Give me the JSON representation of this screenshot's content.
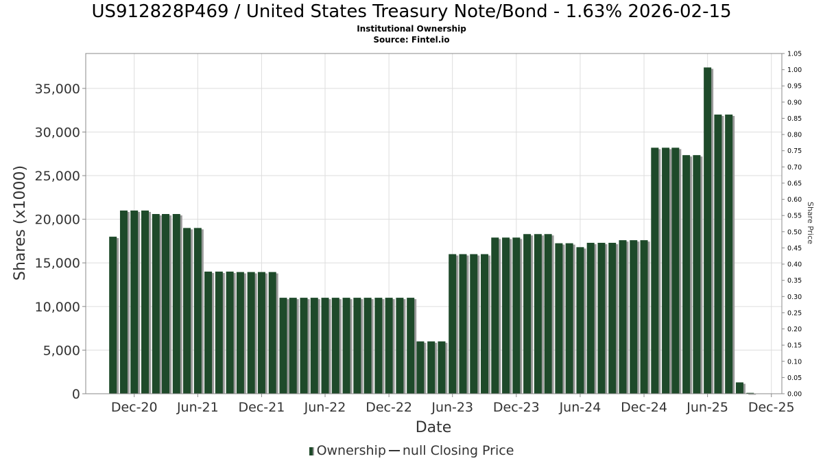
{
  "header": {
    "title": "US912828P469 / United States Treasury Note/Bond - 1.63% 2026-02-15",
    "subtitle": "Institutional Ownership",
    "source": "Source: Fintel.io"
  },
  "legend": {
    "ownership_label": "Ownership",
    "price_label": "null Closing Price"
  },
  "colors": {
    "bar": "#1e4a2a",
    "bar_shadow": "#9a9a9a",
    "grid": "#dddddd"
  },
  "chart_data": {
    "type": "bar",
    "title": "US912828P469 / United States Treasury Note/Bond - 1.63% 2026-02-15",
    "xlabel": "Date",
    "ylabel": "Shares (x1000)",
    "y2label": "Share Price",
    "ylim": [
      0,
      39000
    ],
    "y2lim": [
      0,
      1.05
    ],
    "yticks": [
      0,
      5000,
      10000,
      15000,
      20000,
      25000,
      30000,
      35000
    ],
    "yticklabels": [
      "0",
      "5,000",
      "10,000",
      "15,000",
      "20,000",
      "25,000",
      "30,000",
      "35,000"
    ],
    "y2ticklabels": [
      "0.00",
      "0.05",
      "0.10",
      "0.15",
      "0.20",
      "0.25",
      "0.30",
      "0.35",
      "0.40",
      "0.45",
      "0.50",
      "0.55",
      "0.60",
      "0.65",
      "0.70",
      "0.75",
      "0.80",
      "0.85",
      "0.90",
      "0.95",
      "1.00",
      "1.05"
    ],
    "xlim": [
      "2020-07-15",
      "2025-12-31"
    ],
    "xticks": [
      "2020-12-01",
      "2021-06-01",
      "2021-12-01",
      "2022-06-01",
      "2022-12-01",
      "2023-06-01",
      "2023-12-01",
      "2024-06-01",
      "2024-12-01",
      "2025-06-01",
      "2025-12-01"
    ],
    "xticklabels": [
      "Dec-20",
      "Jun-21",
      "Dec-21",
      "Jun-22",
      "Dec-22",
      "Jun-23",
      "Dec-23",
      "Jun-24",
      "Dec-24",
      "Jun-25",
      "Dec-25"
    ],
    "grid": true,
    "legend_position": "bottom",
    "series": [
      {
        "name": "Ownership",
        "x": [
          "2020-10-01",
          "2020-11-01",
          "2020-12-01",
          "2021-01-01",
          "2021-02-01",
          "2021-03-01",
          "2021-04-01",
          "2021-05-01",
          "2021-06-01",
          "2021-07-01",
          "2021-08-01",
          "2021-09-01",
          "2021-10-01",
          "2021-11-01",
          "2021-12-01",
          "2022-01-01",
          "2022-02-01",
          "2022-03-01",
          "2022-04-01",
          "2022-05-01",
          "2022-06-01",
          "2022-07-01",
          "2022-08-01",
          "2022-09-01",
          "2022-10-01",
          "2022-11-01",
          "2022-12-01",
          "2023-01-01",
          "2023-02-01",
          "2023-03-01",
          "2023-04-01",
          "2023-05-01",
          "2023-06-01",
          "2023-07-01",
          "2023-08-01",
          "2023-09-01",
          "2023-10-01",
          "2023-11-01",
          "2023-12-01",
          "2024-01-01",
          "2024-02-01",
          "2024-03-01",
          "2024-04-01",
          "2024-05-01",
          "2024-06-01",
          "2024-07-01",
          "2024-08-01",
          "2024-09-01",
          "2024-10-01",
          "2024-11-01",
          "2024-12-01",
          "2025-01-01",
          "2025-02-01",
          "2025-03-01",
          "2025-04-01",
          "2025-05-01",
          "2025-06-01",
          "2025-07-01",
          "2025-08-01",
          "2025-09-01",
          "2025-10-01"
        ],
        "values": [
          18000,
          21000,
          21000,
          21000,
          20600,
          20600,
          20600,
          19000,
          19000,
          14000,
          14000,
          14000,
          13950,
          13950,
          13950,
          13950,
          11000,
          11000,
          11000,
          11000,
          11000,
          11000,
          11000,
          11000,
          11000,
          11000,
          11000,
          11000,
          11000,
          6000,
          6000,
          6000,
          16000,
          16000,
          16000,
          16000,
          17900,
          17900,
          17900,
          18300,
          18300,
          18300,
          17250,
          17250,
          16800,
          17300,
          17300,
          17300,
          17600,
          17600,
          17600,
          28200,
          28200,
          28200,
          27350,
          27350,
          37400,
          32000,
          32000,
          1300,
          100
        ]
      },
      {
        "name": "null Closing Price",
        "values": []
      }
    ]
  }
}
